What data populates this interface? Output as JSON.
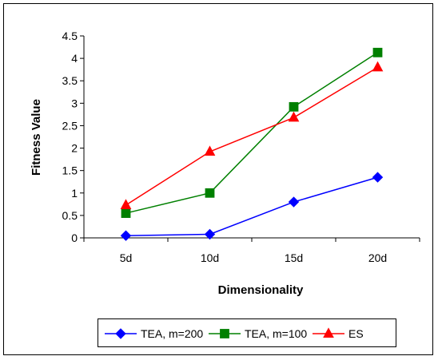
{
  "chart_data": {
    "type": "line",
    "title": "",
    "xlabel": "Dimensionality",
    "ylabel": "Fitness Value",
    "categories": [
      "5d",
      "10d",
      "15d",
      "20d"
    ],
    "ylim": [
      0,
      4.5
    ],
    "yticks": [
      "0",
      "0.5",
      "1",
      "1.5",
      "2",
      "2.5",
      "3",
      "3.5",
      "4",
      "4.5"
    ],
    "grid": false,
    "legend_position": "bottom",
    "series": [
      {
        "name": "TEA, m=200",
        "values": [
          0.05,
          0.08,
          0.8,
          1.35
        ],
        "color": "#0000ff",
        "marker": "diamond"
      },
      {
        "name": "TEA, m=100",
        "values": [
          0.55,
          1.0,
          2.92,
          4.13
        ],
        "color": "#008000",
        "marker": "square"
      },
      {
        "name": "ES",
        "values": [
          0.73,
          1.92,
          2.68,
          3.8
        ],
        "color": "#ff0000",
        "marker": "triangle"
      }
    ]
  }
}
